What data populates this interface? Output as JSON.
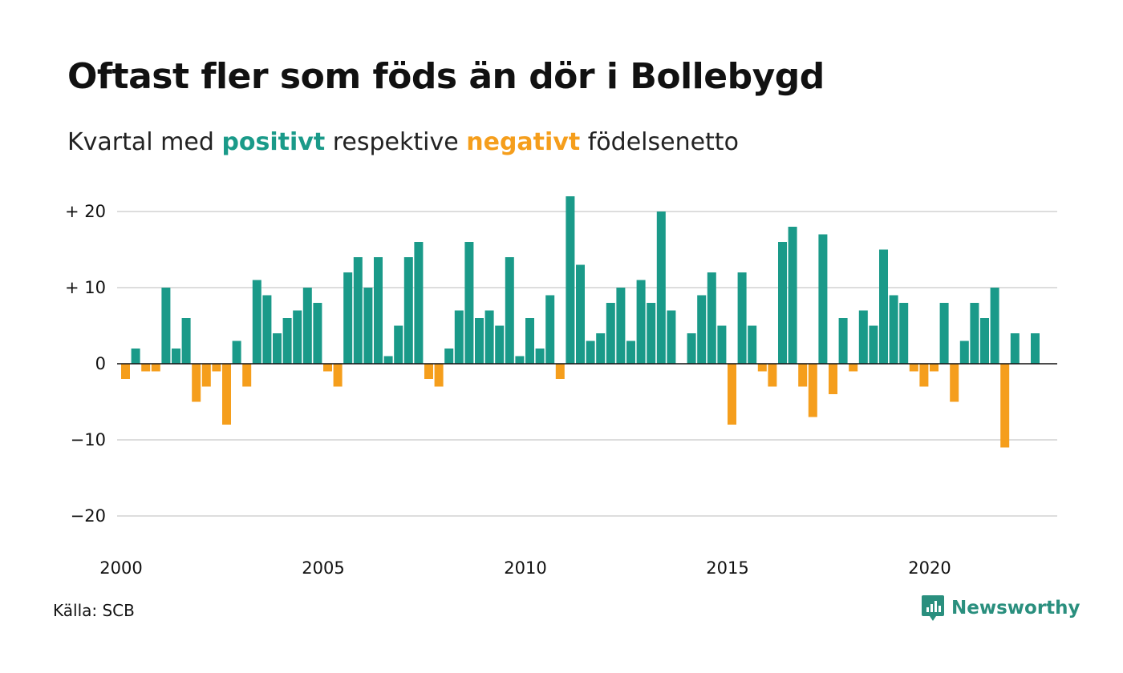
{
  "title": "Oftast fler som föds än dör i Bollebygd",
  "subtitle": {
    "prefix": "Kvartal med",
    "positive_word": "positivt",
    "middle": "respektive",
    "negative_word": "negativt",
    "suffix": "födelsenetto"
  },
  "source": "Källa: SCB",
  "brand": {
    "name": "Newsworthy",
    "icon": "newsworthy-logo-icon"
  },
  "colors": {
    "positive": "#1a9a89",
    "negative": "#f59e1c",
    "grid": "#dddddd",
    "zero": "#111111"
  },
  "chart_data": {
    "type": "bar",
    "x_start": "2000 Q1",
    "x_tick_labels": [
      "2000",
      "2005",
      "2010",
      "2015",
      "2020"
    ],
    "x_tick_values": [
      2000,
      2005,
      2010,
      2015,
      2020
    ],
    "y_tick_labels": [
      "+ 20",
      "+ 10",
      "0",
      "−10",
      "−20"
    ],
    "y_tick_values": [
      20,
      10,
      0,
      -10,
      -20
    ],
    "ylim": [
      -20,
      22
    ],
    "grid": true,
    "values": [
      -2,
      2,
      -1,
      -1,
      10,
      2,
      6,
      -5,
      -3,
      -1,
      -8,
      3,
      -3,
      11,
      9,
      4,
      6,
      7,
      10,
      8,
      -1,
      -3,
      12,
      14,
      10,
      14,
      1,
      5,
      14,
      16,
      -2,
      -3,
      2,
      7,
      16,
      6,
      7,
      5,
      14,
      1,
      6,
      2,
      9,
      -2,
      22,
      13,
      3,
      4,
      8,
      10,
      3,
      11,
      8,
      20,
      7,
      0,
      4,
      9,
      12,
      5,
      -8,
      12,
      5,
      -1,
      -3,
      16,
      18,
      -3,
      -7,
      17,
      -4,
      6,
      -1,
      7,
      5,
      15,
      9,
      8,
      -1,
      -3,
      -1,
      8,
      -5,
      3,
      8,
      6,
      10,
      -11,
      4,
      0,
      4
    ]
  }
}
